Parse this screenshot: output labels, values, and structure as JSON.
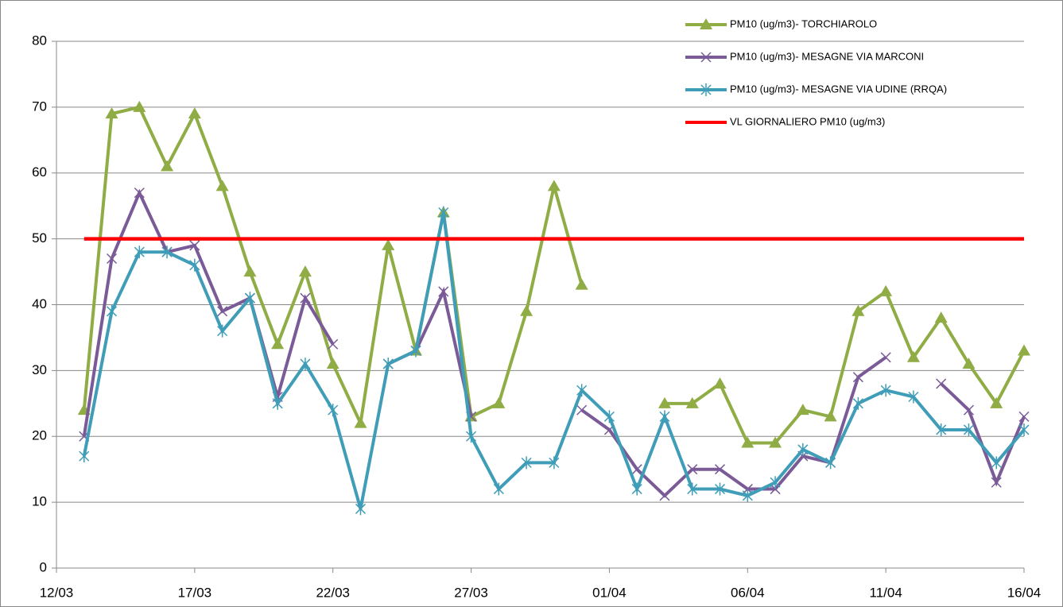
{
  "chart_data": {
    "type": "line",
    "categories": [
      "12/03",
      null,
      null,
      null,
      null,
      "17/03",
      null,
      null,
      null,
      null,
      "22/03",
      null,
      null,
      null,
      null,
      "27/03",
      null,
      null,
      null,
      null,
      "01/04",
      null,
      null,
      null,
      null,
      "06/04",
      null,
      null,
      null,
      null,
      "11/04",
      null,
      null,
      null,
      null,
      "16/04"
    ],
    "series": [
      {
        "name": "PM10 (ug/m3)- TORCHIAROLO",
        "color": "#8fac45",
        "marker": "triangle",
        "values": [
          null,
          24,
          69,
          70,
          61,
          69,
          58,
          45,
          34,
          45,
          31,
          22,
          49,
          33,
          54,
          23,
          25,
          39,
          58,
          43,
          null,
          null,
          25,
          25,
          28,
          19,
          19,
          24,
          23,
          39,
          42,
          32,
          38,
          31,
          25,
          33
        ]
      },
      {
        "name": "PM10 (ug/m3)- MESAGNE VIA MARCONI",
        "color": "#7a5a97",
        "marker": "x",
        "values": [
          null,
          20,
          47,
          57,
          48,
          49,
          39,
          41,
          26,
          41,
          34,
          null,
          31,
          33,
          42,
          23,
          null,
          null,
          null,
          24,
          21,
          15,
          11,
          15,
          15,
          12,
          12,
          17,
          16,
          29,
          32,
          null,
          28,
          24,
          13,
          23
        ]
      },
      {
        "name": "PM10 (ug/m3)- MESAGNE VIA UDINE (RRQA)",
        "color": "#3f9db8",
        "marker": "star",
        "values": [
          null,
          17,
          39,
          48,
          48,
          46,
          36,
          41,
          25,
          31,
          24,
          9,
          31,
          33,
          54,
          20,
          12,
          16,
          16,
          27,
          23,
          12,
          23,
          12,
          12,
          11,
          13,
          18,
          16,
          25,
          27,
          26,
          21,
          21,
          16,
          21
        ]
      },
      {
        "name": "VL GIORNALIERO PM10 (ug/m3)",
        "color": "#ff0000",
        "marker": null,
        "values": [
          null,
          50,
          50,
          50,
          50,
          50,
          50,
          50,
          50,
          50,
          50,
          50,
          50,
          50,
          50,
          50,
          50,
          50,
          50,
          50,
          50,
          50,
          50,
          50,
          50,
          50,
          50,
          50,
          50,
          50,
          50,
          50,
          50,
          50,
          50,
          50
        ]
      }
    ],
    "ylim": [
      0,
      80
    ],
    "yticks": [
      0,
      10,
      20,
      30,
      40,
      50,
      60,
      70,
      80
    ],
    "grid": true,
    "legend": "top-right"
  }
}
